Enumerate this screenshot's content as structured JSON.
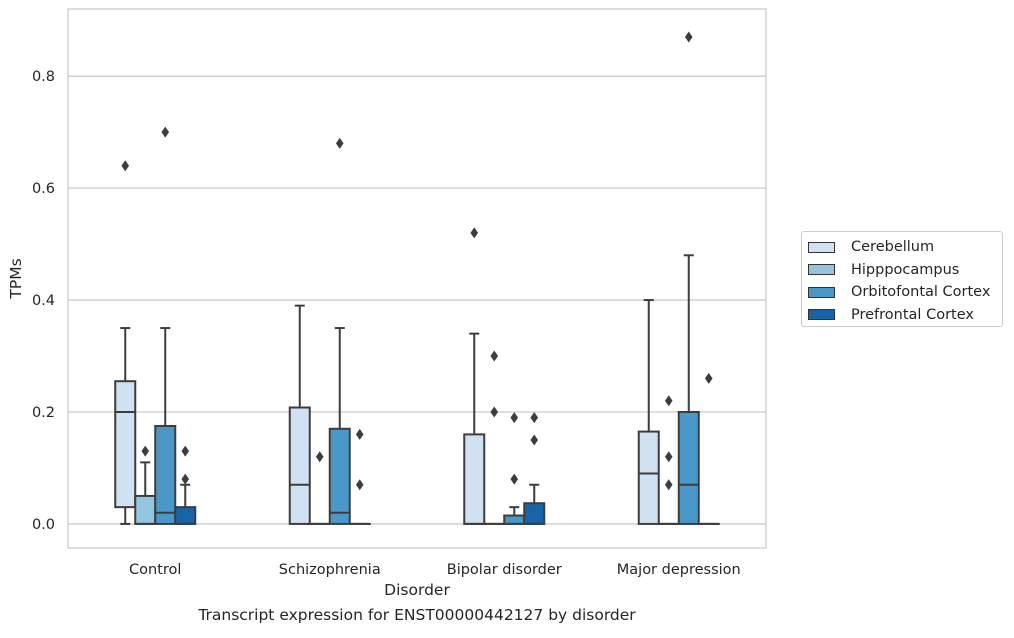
{
  "caption": "Transcript expression for ENST00000442127 by disorder",
  "chart_data": {
    "type": "box",
    "title": "",
    "xlabel": "Disorder",
    "ylabel": "TPMs",
    "ylim": [
      -0.043,
      0.92
    ],
    "yticks": [
      0.0,
      0.2,
      0.4,
      0.6,
      0.8
    ],
    "ytick_labels": [
      "0.0",
      "0.2",
      "0.4",
      "0.6",
      "0.8"
    ],
    "grid": true,
    "legend_position": "right",
    "categories": [
      "Control",
      "Schizophrenia",
      "Bipolar disorder",
      "Major depression"
    ],
    "series": [
      {
        "name": "Cerebellum",
        "color": "#d0e1f2",
        "boxes": [
          {
            "q1": 0.03,
            "median": 0.2,
            "q3": 0.255,
            "whisker_low": 0.0,
            "whisker_high": 0.35,
            "outliers": [
              0.64
            ]
          },
          {
            "q1": 0.0,
            "median": 0.07,
            "q3": 0.208,
            "whisker_low": 0.0,
            "whisker_high": 0.39,
            "outliers": []
          },
          {
            "q1": 0.0,
            "median": 0.0,
            "q3": 0.16,
            "whisker_low": 0.0,
            "whisker_high": 0.34,
            "outliers": [
              0.52
            ]
          },
          {
            "q1": 0.0,
            "median": 0.09,
            "q3": 0.165,
            "whisker_low": 0.0,
            "whisker_high": 0.4,
            "outliers": []
          }
        ]
      },
      {
        "name": "Hipppocampus",
        "color": "#94c4df",
        "boxes": [
          {
            "q1": 0.0,
            "median": 0.0,
            "q3": 0.05,
            "whisker_low": 0.0,
            "whisker_high": 0.11,
            "outliers": [
              0.13
            ]
          },
          {
            "q1": 0.0,
            "median": 0.0,
            "q3": 0.0,
            "whisker_low": 0.0,
            "whisker_high": 0.0,
            "outliers": [
              0.12
            ]
          },
          {
            "q1": 0.0,
            "median": 0.0,
            "q3": 0.0,
            "whisker_low": 0.0,
            "whisker_high": 0.0,
            "outliers": [
              0.2,
              0.3
            ]
          },
          {
            "q1": 0.0,
            "median": 0.0,
            "q3": 0.0,
            "whisker_low": 0.0,
            "whisker_high": 0.0,
            "outliers": [
              0.07,
              0.12,
              0.22
            ]
          }
        ]
      },
      {
        "name": "Orbitofontal Cortex",
        "color": "#4a98c9",
        "boxes": [
          {
            "q1": 0.0,
            "median": 0.02,
            "q3": 0.175,
            "whisker_low": 0.0,
            "whisker_high": 0.35,
            "outliers": [
              0.7
            ]
          },
          {
            "q1": 0.0,
            "median": 0.02,
            "q3": 0.17,
            "whisker_low": 0.0,
            "whisker_high": 0.35,
            "outliers": [
              0.68
            ]
          },
          {
            "q1": 0.0,
            "median": 0.0,
            "q3": 0.015,
            "whisker_low": 0.0,
            "whisker_high": 0.03,
            "outliers": [
              0.08,
              0.19
            ]
          },
          {
            "q1": 0.0,
            "median": 0.07,
            "q3": 0.2,
            "whisker_low": 0.0,
            "whisker_high": 0.48,
            "outliers": [
              0.87
            ]
          }
        ]
      },
      {
        "name": "Prefrontal Cortex",
        "color": "#1764ab",
        "boxes": [
          {
            "q1": 0.0,
            "median": 0.0,
            "q3": 0.03,
            "whisker_low": 0.0,
            "whisker_high": 0.07,
            "outliers": [
              0.08,
              0.13
            ]
          },
          {
            "q1": 0.0,
            "median": 0.0,
            "q3": 0.0,
            "whisker_low": 0.0,
            "whisker_high": 0.0,
            "outliers": [
              0.07,
              0.16
            ]
          },
          {
            "q1": 0.0,
            "median": 0.0,
            "q3": 0.037,
            "whisker_low": 0.0,
            "whisker_high": 0.07,
            "outliers": [
              0.15,
              0.19
            ]
          },
          {
            "q1": 0.0,
            "median": 0.0,
            "q3": 0.0,
            "whisker_low": 0.0,
            "whisker_high": 0.0,
            "outliers": [
              0.26
            ]
          }
        ]
      }
    ]
  }
}
